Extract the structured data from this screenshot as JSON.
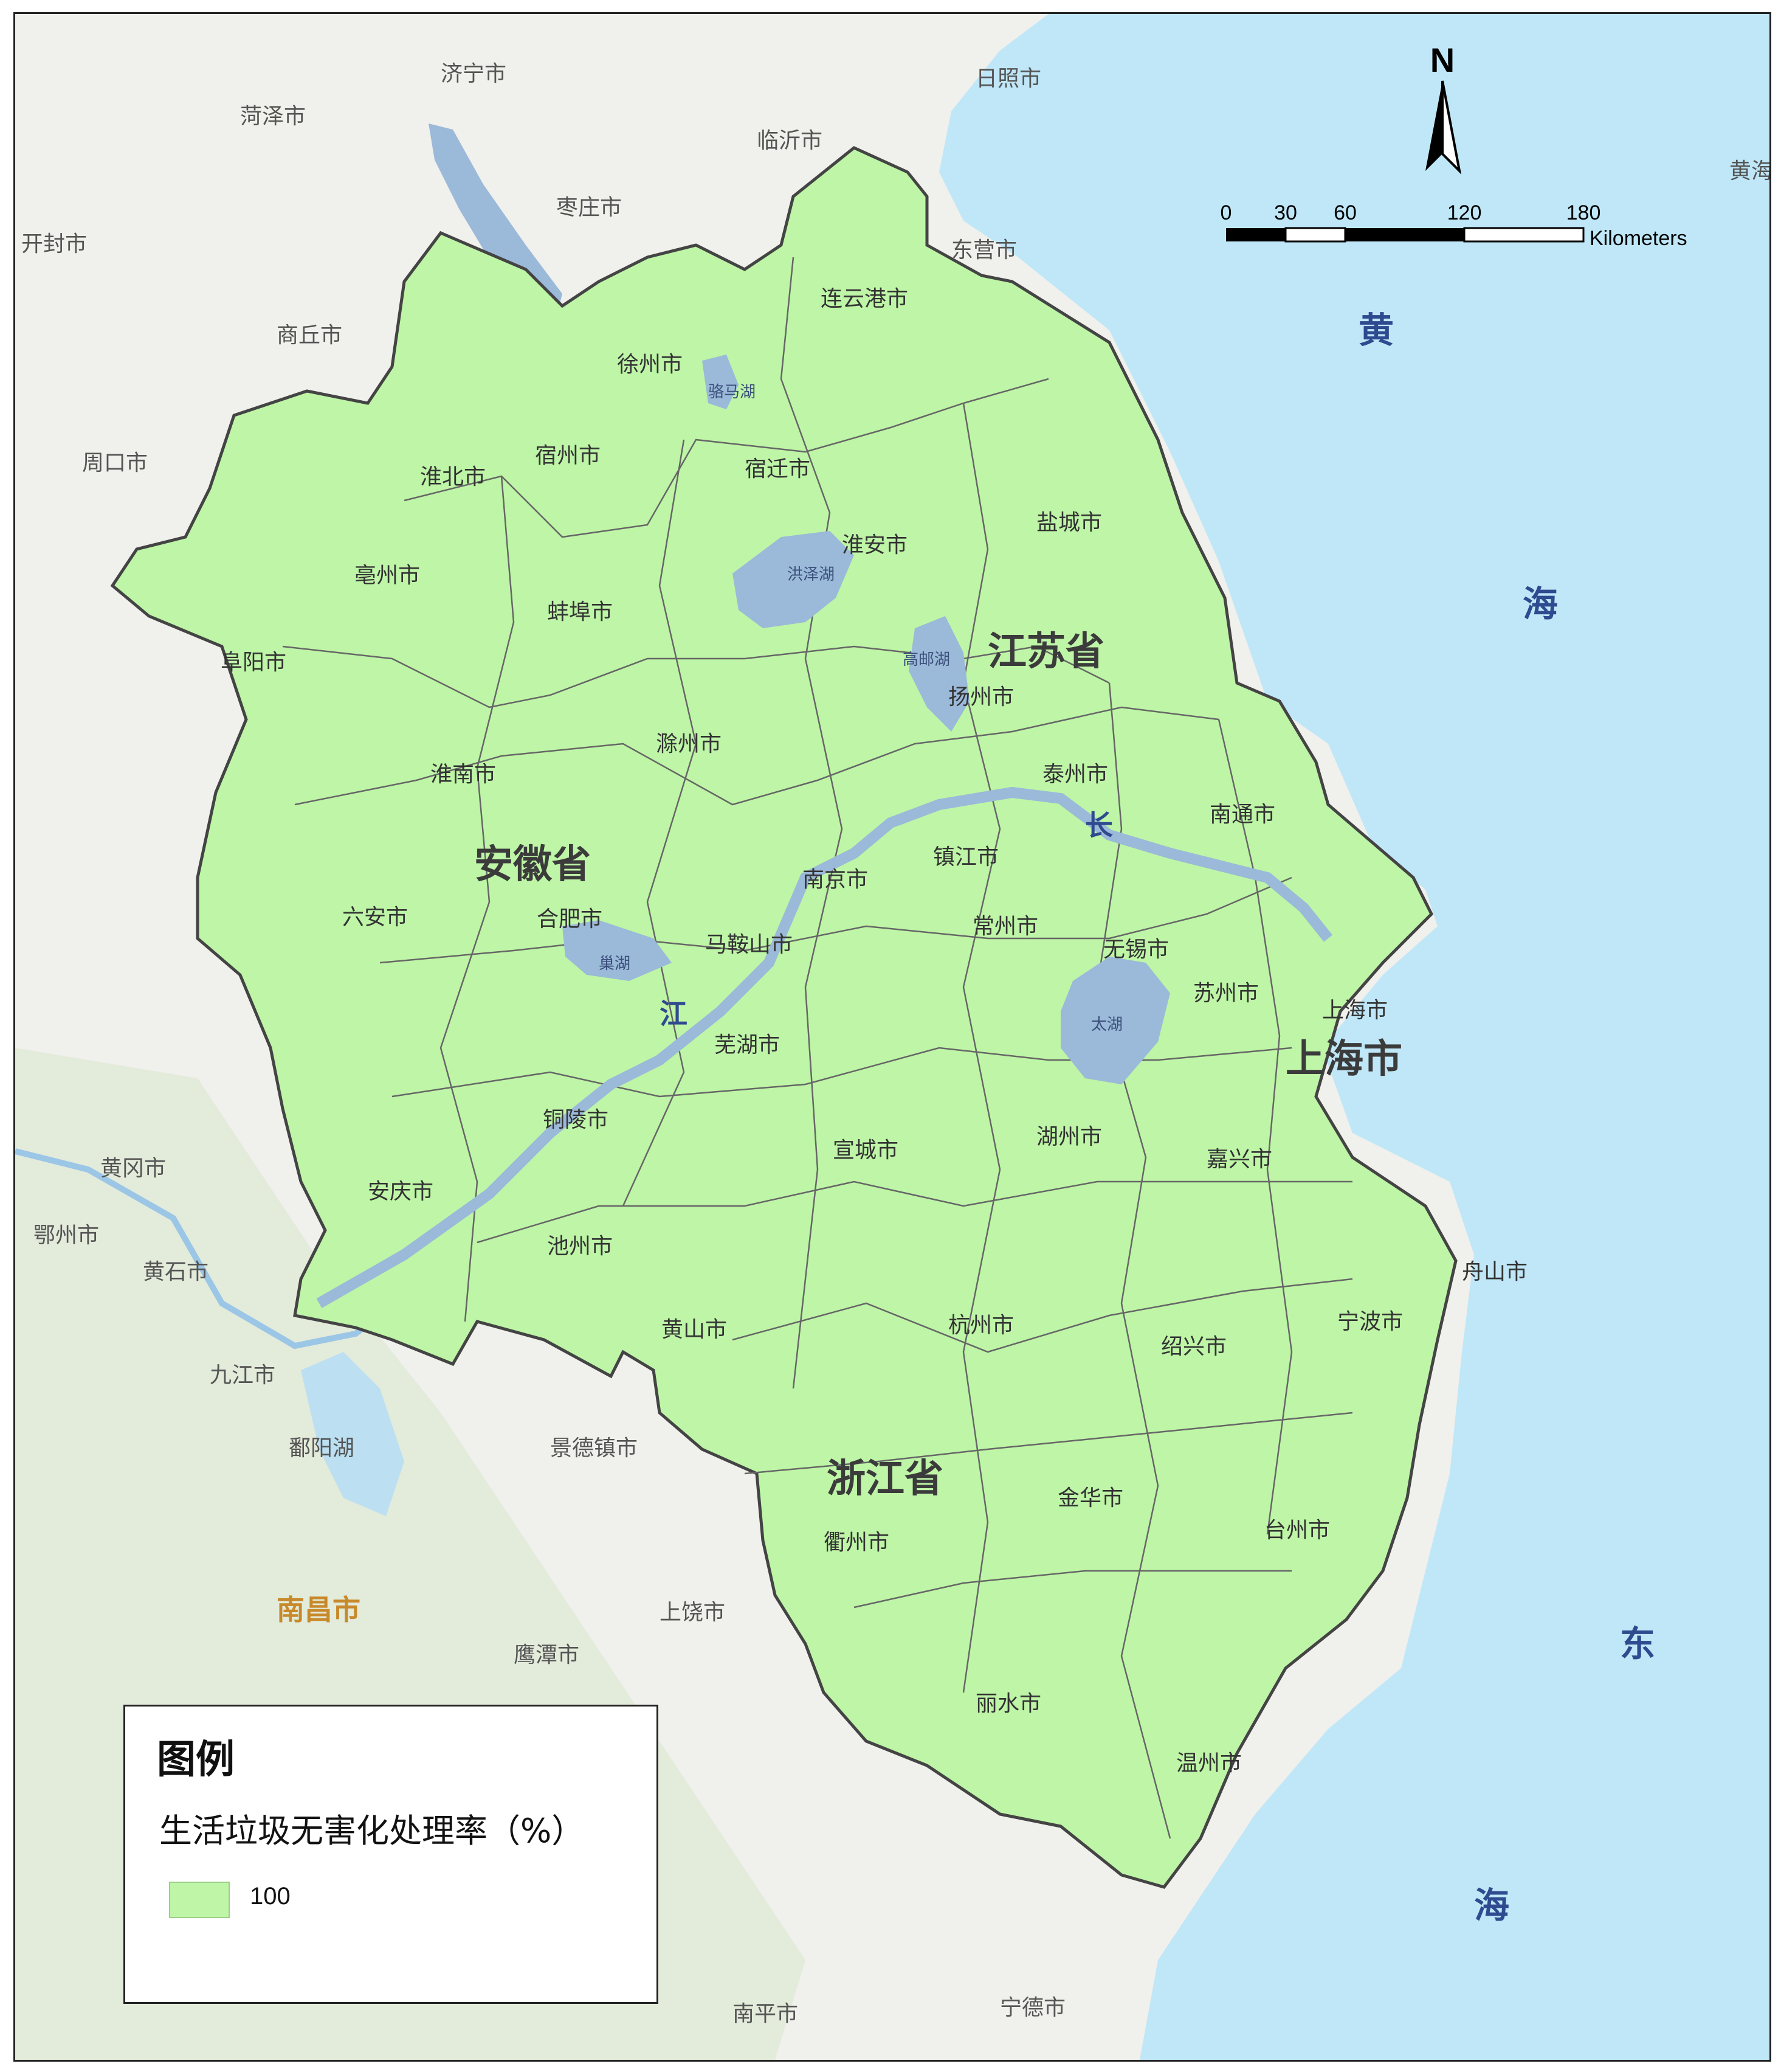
{
  "title": "",
  "colors": {
    "sea": "#bfe7f8",
    "land_background": "#f0f0ec",
    "region_fill": "#bef5a7",
    "lake": "#9bb9d9",
    "boundary": "#555555"
  },
  "north_arrow": {
    "label": "N",
    "icon": "north-arrow-icon"
  },
  "scale_bar": {
    "ticks": [
      "0",
      "30",
      "60",
      "120",
      "180"
    ],
    "unit": "Kilometers"
  },
  "legend": {
    "title": "图例",
    "subtitle": "生活垃圾无害化处理率（%）",
    "items": [
      {
        "label": "100",
        "color": "#bef5a7"
      }
    ]
  },
  "provinces": [
    "江苏省",
    "安徽省",
    "浙江省",
    "上海市"
  ],
  "cities": [
    "连云港市",
    "徐州市",
    "宿迁市",
    "宿州市",
    "淮北市",
    "盐城市",
    "淮安市",
    "亳州市",
    "蚌埠市",
    "阜阳市",
    "扬州市",
    "滁州市",
    "泰州市",
    "淮南市",
    "南通市",
    "镇江市",
    "南京市",
    "六安市",
    "合肥市",
    "马鞍山市",
    "常州市",
    "无锡市",
    "苏州市",
    "上海市",
    "芜湖市",
    "铜陵市",
    "湖州市",
    "宣城市",
    "嘉兴市",
    "安庆市",
    "池州市",
    "黄山市",
    "杭州市",
    "绍兴市",
    "宁波市",
    "舟山市",
    "金华市",
    "衢州市",
    "台州市",
    "丽水市",
    "温州市"
  ],
  "lakes": [
    "骆马湖",
    "洪泽湖",
    "高邮湖",
    "巢湖",
    "太湖"
  ],
  "river_chars": [
    "长",
    "江"
  ],
  "sea_chars": [
    "黄",
    "海",
    "东",
    "海"
  ],
  "background_places": [
    "济宁市",
    "日照市",
    "菏泽市",
    "临沂市",
    "枣庄市",
    "开封市",
    "商丘市",
    "周口市",
    "黄冈市",
    "鄂州市",
    "黄石市",
    "九江市",
    "鄱阳湖",
    "景德镇市",
    "南昌市",
    "上饶市",
    "鹰潭市",
    "南平市",
    "宁德市",
    "东营市",
    "黄海"
  ]
}
